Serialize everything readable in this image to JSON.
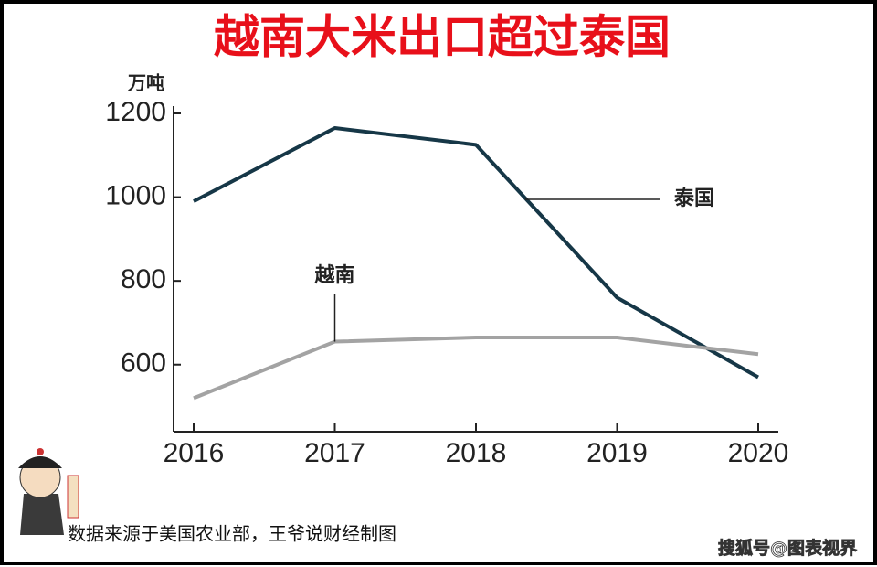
{
  "chart_data": {
    "type": "line",
    "title": "越南大米出口超过泰国",
    "y_unit": "万吨",
    "categories": [
      "2016",
      "2017",
      "2018",
      "2019",
      "2020"
    ],
    "series": [
      {
        "name": "泰国",
        "color": "#163747",
        "values": [
          990,
          1165,
          1125,
          760,
          570
        ]
      },
      {
        "name": "越南",
        "color": "#a3a3a3",
        "values": [
          520,
          655,
          665,
          665,
          625
        ]
      }
    ],
    "ylim": [
      440,
      1200
    ],
    "yticks": [
      600,
      800,
      1000,
      1200
    ],
    "source": "数据来源于美国农业部，王爷说财经制图",
    "watermark": "搜狐号@图表视界"
  }
}
